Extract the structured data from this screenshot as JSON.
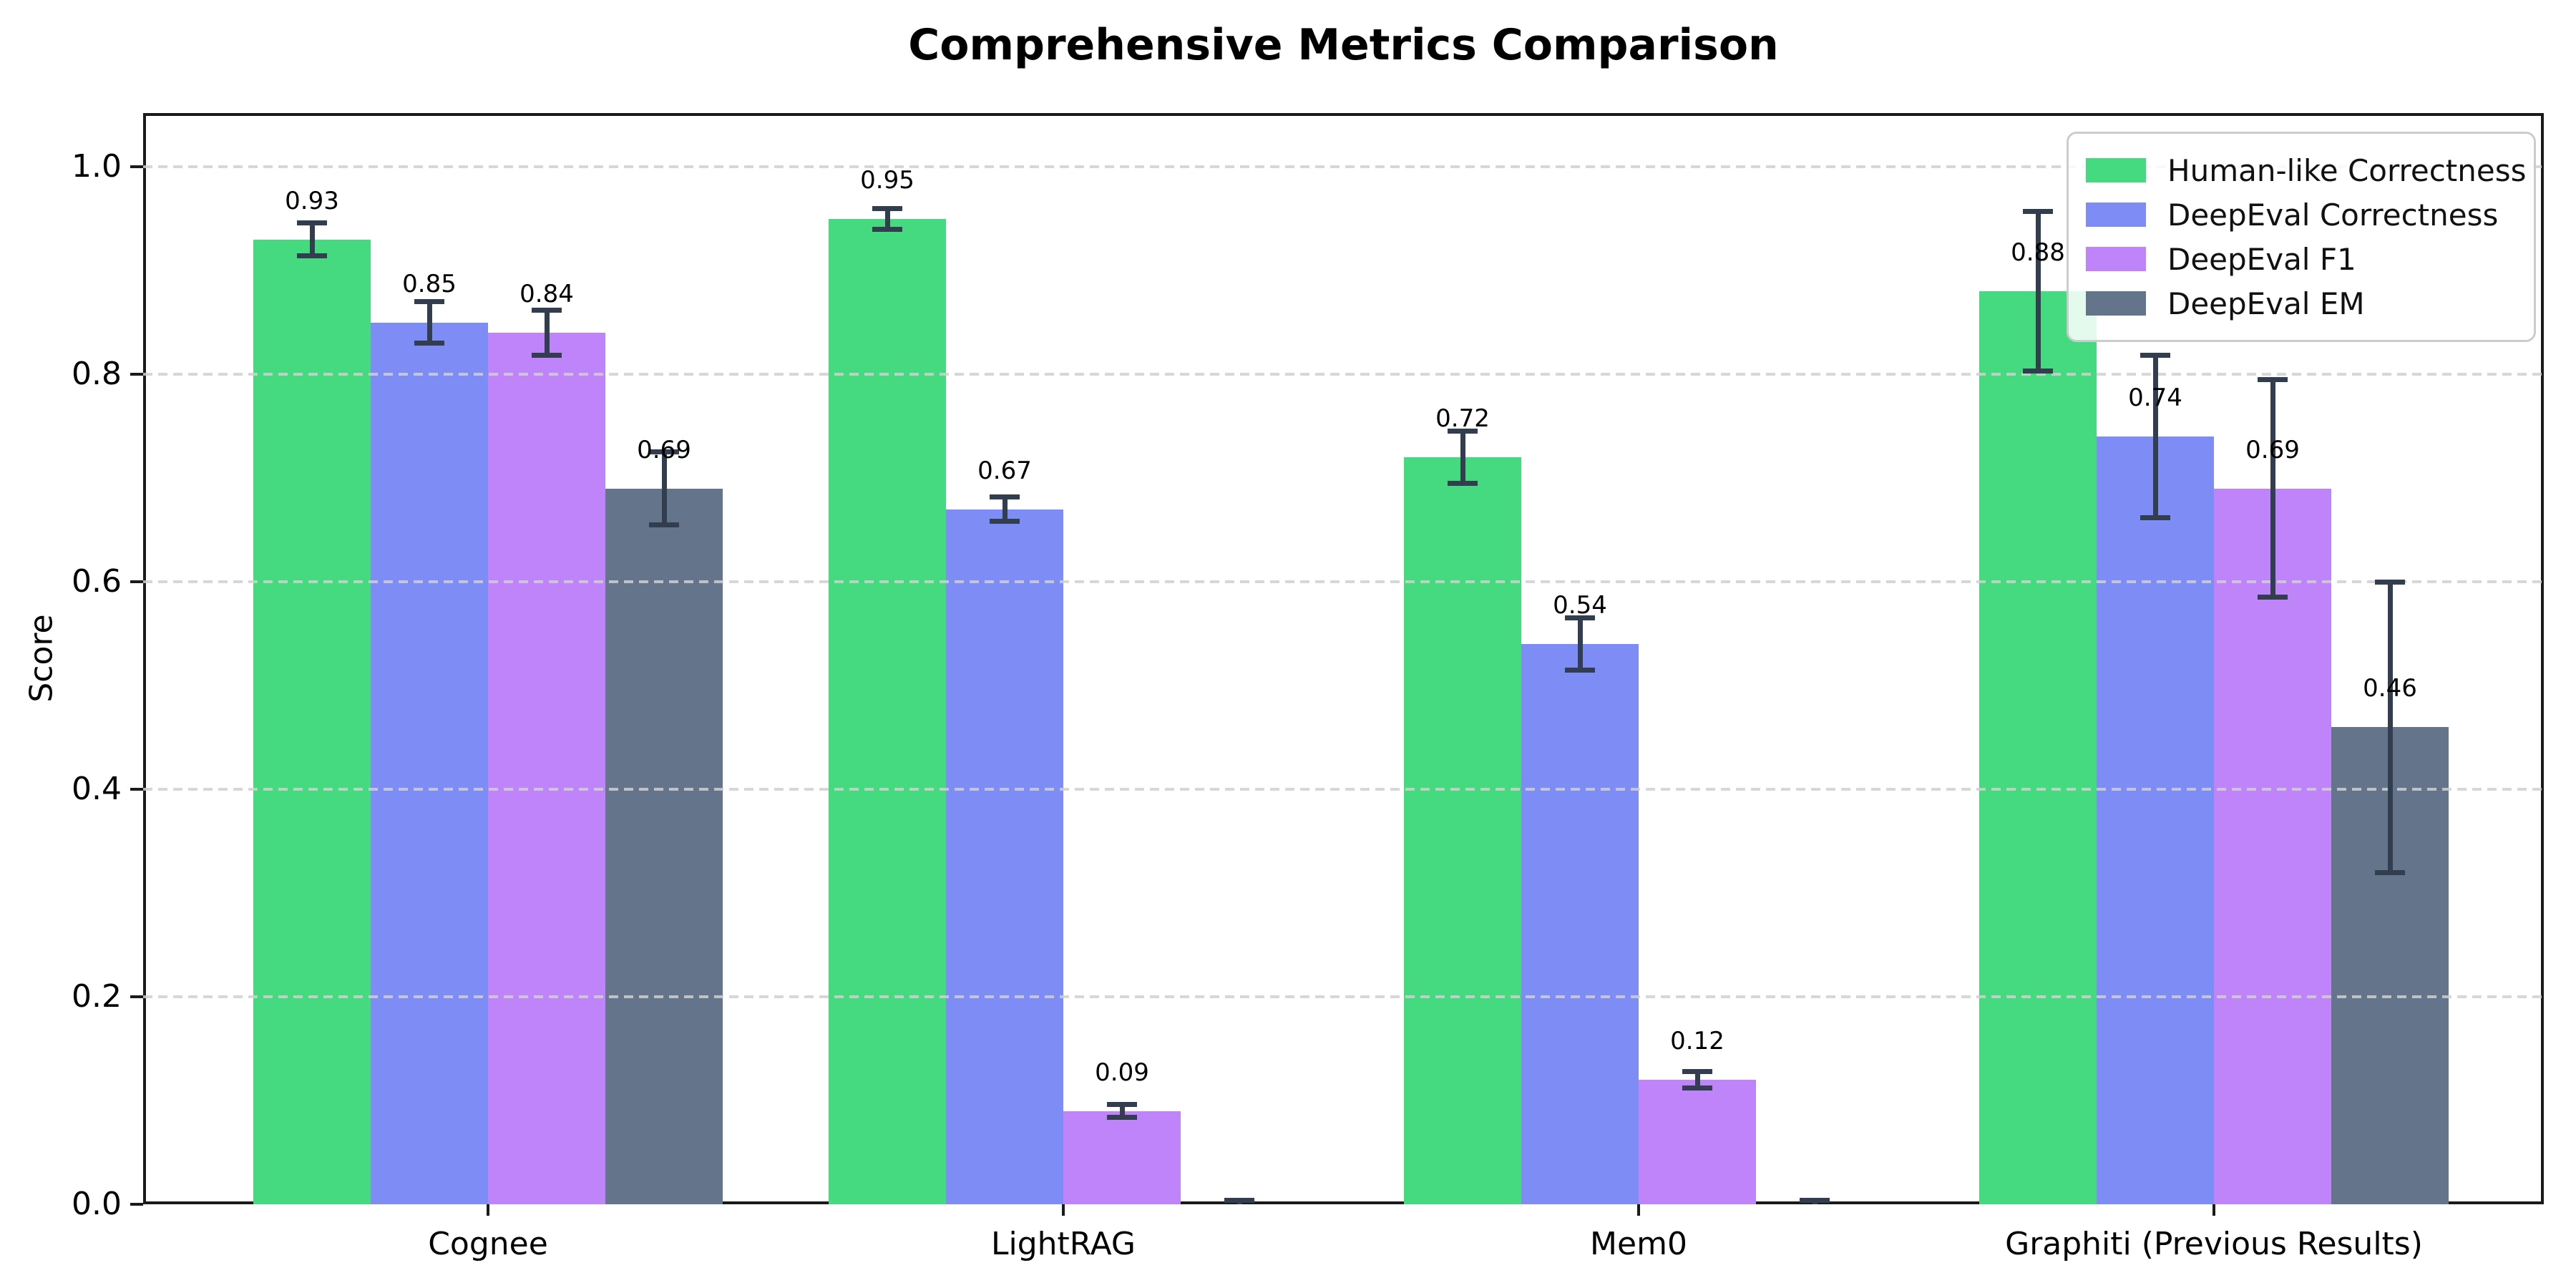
{
  "figure": {
    "background": "#ffffff"
  },
  "chart_data": {
    "type": "bar",
    "title": "Comprehensive Metrics Comparison",
    "xlabel": "",
    "ylabel": "Score",
    "categories": [
      "Cognee",
      "LightRAG",
      "Mem0",
      "Graphiti (Previous Results)"
    ],
    "series": [
      {
        "name": "Human-like Correctness",
        "color": "#45da7f",
        "values": [
          0.93,
          0.95,
          0.72,
          0.88
        ],
        "errors": [
          0.016,
          0.01,
          0.025,
          0.077
        ],
        "labels": [
          "0.93",
          "0.95",
          "0.72",
          "0.88"
        ]
      },
      {
        "name": "DeepEval Correctness",
        "color": "#7e8cf5",
        "values": [
          0.85,
          0.67,
          0.54,
          0.74
        ],
        "errors": [
          0.02,
          0.012,
          0.025,
          0.078
        ],
        "labels": [
          "0.85",
          "0.67",
          "0.54",
          "0.74"
        ]
      },
      {
        "name": "DeepEval F1",
        "color": "#bf83fa",
        "values": [
          0.84,
          0.09,
          0.12,
          0.69
        ],
        "errors": [
          0.022,
          0.006,
          0.008,
          0.105
        ],
        "labels": [
          "0.84",
          "0.09",
          "0.12",
          "0.69"
        ]
      },
      {
        "name": "DeepEval EM",
        "color": "#64748b",
        "values": [
          0.69,
          0.0,
          0.0,
          0.46
        ],
        "errors": [
          0.035,
          0.004,
          0.004,
          0.14
        ],
        "labels": [
          "0.69",
          null,
          null,
          "0.46"
        ]
      }
    ],
    "ytick_labels": [
      "0.0",
      "0.2",
      "0.4",
      "0.6",
      "0.8",
      "1.0"
    ],
    "ytick_values": [
      0.0,
      0.2,
      0.4,
      0.6,
      0.8,
      1.0
    ],
    "ylim": [
      0.0,
      1.05
    ],
    "grid": {
      "axis": "y",
      "style": "dashed",
      "color": "#d0d0d0",
      "above_bars": true
    },
    "legend": {
      "position": "upper right"
    },
    "error_bar_color": "#323d4f",
    "spine_color": "#1a1a1a",
    "text_color": "#000000"
  }
}
